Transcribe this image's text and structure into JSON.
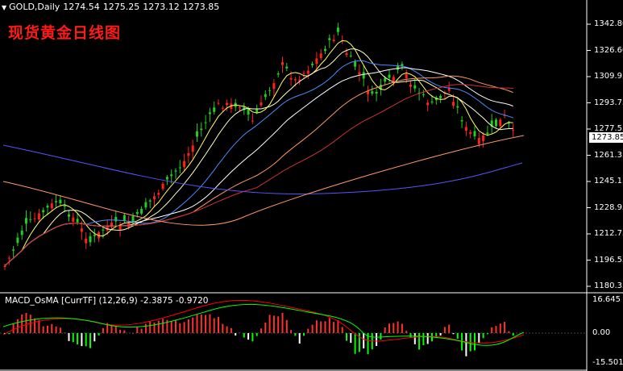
{
  "header": {
    "dropdown_icon": "triangle-down-icon",
    "symbol": "GOLD,Daily",
    "open": "1274.54",
    "high": "1275.25",
    "low": "1273.12",
    "close": "1273.85"
  },
  "overlay_title": "现货黄金日线图",
  "price_axis": {
    "labels": [
      "1342.80",
      "1326.60",
      "1309.95",
      "1293.75",
      "1277.55",
      "1261.35",
      "1245.15",
      "1228.95",
      "1212.75",
      "1196.55",
      "1180.35"
    ],
    "current_price": "1273.85"
  },
  "macd": {
    "label": "MACD_OsMA [CurrTF] (12,26,9) -2.3875 -0.9720",
    "axis_labels": [
      "16.645",
      "0.00",
      "-15.5018"
    ]
  },
  "colors": {
    "background": "#000000",
    "bull_candle": "#ff2020",
    "bear_candle": "#22cc22",
    "ma_yellow": "#ffff66",
    "ma_white": "#ffffff",
    "ma_light": "#ffffcc",
    "ma_blue": "#4a8cff",
    "ma_orange": "#ff9966",
    "ma_dark_red": "#cc3333",
    "ma_navy": "#5555ff",
    "macd_up": "#ff3030",
    "macd_down": "#ffffff",
    "signal_red": "#ff0000",
    "signal_green": "#00ff00"
  }
}
